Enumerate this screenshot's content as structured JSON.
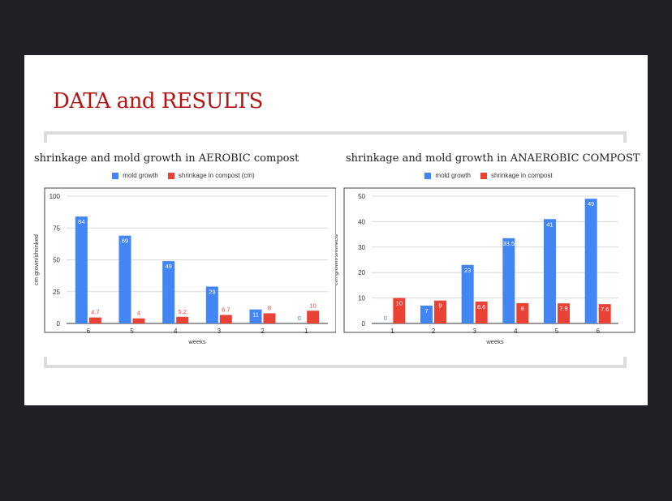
{
  "slide": {
    "title": "DATA and RESULTS"
  },
  "colors": {
    "mold": "#4285f4",
    "shrink": "#ea4335",
    "title": "#b31412"
  },
  "chart_data": [
    {
      "type": "bar",
      "title": "shrinkage and mold growth in AEROBIC compost",
      "xlabel": "weeks",
      "ylabel": "cm grown/shrinked",
      "categories": [
        "6",
        "5",
        "4",
        "3",
        "2",
        "1"
      ],
      "yticks": [
        0,
        25,
        50,
        75,
        100
      ],
      "ylim": [
        0,
        100
      ],
      "grid": true,
      "legend_position": "top",
      "series": [
        {
          "name": "mold growth",
          "values": [
            84,
            69,
            49,
            29,
            11,
            0
          ],
          "labels": [
            "84",
            "69",
            "49",
            "29",
            "11",
            "0"
          ]
        },
        {
          "name": "shrinkage in compost (cm)",
          "values": [
            4.7,
            4,
            5.2,
            6.7,
            8,
            10
          ],
          "labels": [
            "4.7",
            "4",
            "5.2",
            "6.7",
            "8",
            "10"
          ]
        }
      ]
    },
    {
      "type": "bar",
      "title": "shrinkage and mold growth in ANAEROBIC COMPOST",
      "xlabel": "weeks",
      "ylabel": "cm grown/shrinked",
      "categories": [
        "1",
        "2",
        "3",
        "4",
        "5",
        "6"
      ],
      "yticks": [
        0,
        10,
        20,
        30,
        40,
        50
      ],
      "ylim": [
        0,
        50
      ],
      "grid": true,
      "legend_position": "top",
      "series": [
        {
          "name": "mold growth",
          "values": [
            0,
            7,
            23,
            33.5,
            41,
            49
          ],
          "labels": [
            "0",
            "7",
            "23",
            "33.5",
            "41",
            "49"
          ]
        },
        {
          "name": "shrinkage in compost",
          "values": [
            10,
            9,
            8.6,
            8,
            7.9,
            7.6
          ],
          "labels": [
            "10",
            "9",
            "8.6",
            "8",
            "7.9",
            "7.6"
          ]
        }
      ]
    }
  ]
}
